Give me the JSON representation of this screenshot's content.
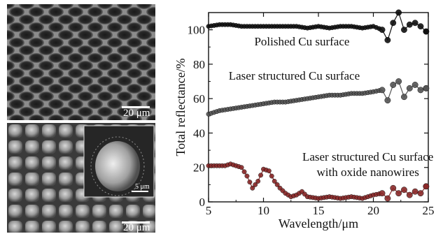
{
  "figure": {
    "sem_top": {
      "scale_label": "20 μm"
    },
    "sem_bottom": {
      "scale_label": "20 μm",
      "inset_scale_label": "5 μm"
    }
  },
  "chart_data": {
    "type": "scatter",
    "xlabel": "Wavelength/μm",
    "ylabel": "Total reflectance/%",
    "xlim": [
      5,
      25
    ],
    "ylim": [
      0,
      110
    ],
    "xticks": [
      5,
      10,
      15,
      20,
      25
    ],
    "yticks": [
      0,
      20,
      40,
      60,
      80,
      100
    ],
    "grid": false,
    "annotations": [
      {
        "text": "Polished Cu surface",
        "x": 13.5,
        "y": 91
      },
      {
        "text": "Laser structured Cu surface",
        "x": 12.8,
        "y": 71
      },
      {
        "text": "Laser structured Cu surface",
        "x": 19.5,
        "y": 24
      },
      {
        "text": "with oxide nanowires",
        "x": 19.5,
        "y": 15
      }
    ],
    "series": [
      {
        "name": "Polished Cu surface",
        "color": "#111111",
        "x": [
          5.0,
          6.0,
          7.0,
          8.0,
          9.0,
          10.0,
          11.0,
          12.0,
          13.0,
          14.0,
          15.0,
          16.0,
          17.0,
          18.0,
          19.0,
          20.0,
          20.8,
          21.3,
          21.8,
          22.3,
          22.8,
          23.3,
          23.8,
          24.3,
          24.8
        ],
        "y": [
          102,
          103,
          103,
          102,
          102,
          102,
          102,
          102,
          102,
          101,
          102,
          101,
          102,
          102,
          101,
          102,
          100,
          94,
          104,
          110,
          100,
          103,
          104,
          102,
          99
        ]
      },
      {
        "name": "Laser structured Cu surface",
        "color": "#555555",
        "x": [
          5.0,
          6.0,
          7.0,
          8.0,
          9.0,
          10.0,
          11.0,
          12.0,
          13.0,
          14.0,
          15.0,
          16.0,
          17.0,
          18.0,
          19.0,
          20.0,
          20.8,
          21.3,
          21.8,
          22.3,
          22.8,
          23.3,
          23.8,
          24.3,
          24.8
        ],
        "y": [
          51,
          53,
          54,
          55,
          56,
          57,
          58,
          58,
          59,
          60,
          61,
          62,
          62,
          63,
          63,
          64,
          65,
          59,
          68,
          70,
          61,
          66,
          68,
          65,
          66
        ]
      },
      {
        "name": "Laser structured Cu surface with oxide nanowires",
        "color": "#8a2a2a",
        "x": [
          5.0,
          5.5,
          6.0,
          6.5,
          7.0,
          7.5,
          8.0,
          8.5,
          9.0,
          9.5,
          10.0,
          10.5,
          11.0,
          11.5,
          12.0,
          12.5,
          13.0,
          13.5,
          14.0,
          15.0,
          16.0,
          17.0,
          18.0,
          19.0,
          20.0,
          20.8,
          21.3,
          21.8,
          22.3,
          22.8,
          23.3,
          23.8,
          24.3,
          24.8
        ],
        "y": [
          21,
          21,
          21,
          21,
          22,
          21,
          20,
          15,
          8,
          12,
          19,
          18,
          12,
          8,
          5,
          3,
          4,
          6,
          3,
          2,
          3,
          2,
          3,
          2,
          4,
          5,
          2,
          8,
          5,
          7,
          4,
          6,
          5,
          9
        ]
      }
    ]
  }
}
